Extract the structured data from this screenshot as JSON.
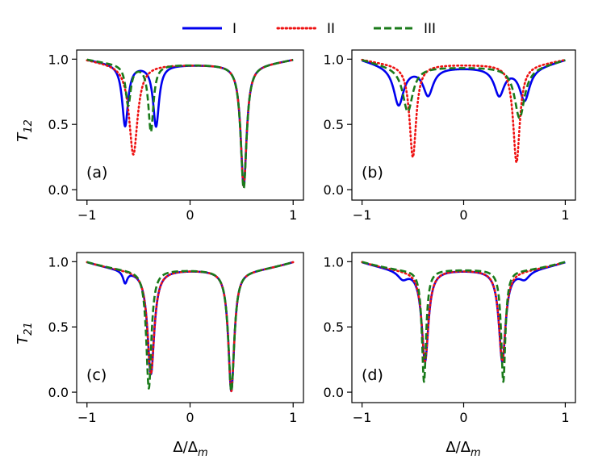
{
  "figure": {
    "legend": [
      {
        "label": "I",
        "color": "#0000ee",
        "dash": "solid"
      },
      {
        "label": "II",
        "color": "#ee1111",
        "dash": "dotted"
      },
      {
        "label": "III",
        "color": "#1a7a1a",
        "dash": "dashed"
      }
    ],
    "ylabel_top": "T12",
    "ylabel_bottom": "T21",
    "xlabel": "Δ/Δm"
  },
  "chart_data": [
    {
      "type": "line",
      "panel": "(a)",
      "ylabel": "T12",
      "xlabel": "",
      "xlim": [
        -1.1,
        1.1
      ],
      "ylim": [
        -0.08,
        1.07
      ],
      "xticks": [
        -1,
        0,
        1
      ],
      "yticks": [
        0.0,
        0.5,
        1.0
      ],
      "xtick_labels": [
        "−1",
        "0",
        "1"
      ],
      "ytick_labels": [
        "0.0",
        "0.5",
        "1.0"
      ],
      "series": [
        {
          "name": "I",
          "baseline": 0.96,
          "dips": [
            {
              "x0": -0.63,
              "w": 0.035,
              "min": 0.49
            },
            {
              "x0": -0.33,
              "w": 0.035,
              "min": 0.49
            },
            {
              "x0": 0.52,
              "w": 0.035,
              "min": 0.03
            }
          ]
        },
        {
          "name": "II",
          "baseline": 0.96,
          "dips": [
            {
              "x0": -0.55,
              "w": 0.05,
              "min": 0.27
            },
            {
              "x0": 0.52,
              "w": 0.035,
              "min": 0.03
            }
          ]
        },
        {
          "name": "III",
          "baseline": 0.96,
          "dips": [
            {
              "x0": -0.6,
              "w": 0.03,
              "min": 0.65
            },
            {
              "x0": -0.38,
              "w": 0.03,
              "min": 0.45
            },
            {
              "x0": 0.52,
              "w": 0.035,
              "min": 0.01
            }
          ]
        }
      ]
    },
    {
      "type": "line",
      "panel": "(b)",
      "ylabel": "",
      "xlabel": "",
      "xlim": [
        -1.1,
        1.1
      ],
      "ylim": [
        -0.08,
        1.07
      ],
      "xticks": [
        -1,
        0,
        1
      ],
      "yticks": [
        0.0,
        0.5,
        1.0
      ],
      "xtick_labels": [
        "−1",
        "0",
        "1"
      ],
      "ytick_labels": [
        "0.0",
        "0.5",
        "1.0"
      ],
      "series": [
        {
          "name": "I",
          "baseline": 0.94,
          "dips": [
            {
              "x0": -0.64,
              "w": 0.06,
              "min": 0.65
            },
            {
              "x0": -0.35,
              "w": 0.06,
              "min": 0.73
            },
            {
              "x0": 0.35,
              "w": 0.06,
              "min": 0.73
            },
            {
              "x0": 0.6,
              "w": 0.06,
              "min": 0.69
            }
          ]
        },
        {
          "name": "II",
          "baseline": 0.96,
          "dips": [
            {
              "x0": -0.5,
              "w": 0.04,
              "min": 0.25
            },
            {
              "x0": 0.52,
              "w": 0.04,
              "min": 0.21
            }
          ]
        },
        {
          "name": "III",
          "baseline": 0.94,
          "dips": [
            {
              "x0": -0.55,
              "w": 0.06,
              "min": 0.6
            },
            {
              "x0": 0.55,
              "w": 0.06,
              "min": 0.55
            }
          ]
        }
      ]
    },
    {
      "type": "line",
      "panel": "(c)",
      "ylabel": "T21",
      "xlabel": "Δ/Δm",
      "xlim": [
        -1.1,
        1.1
      ],
      "ylim": [
        -0.08,
        1.07
      ],
      "xticks": [
        -1,
        0,
        1
      ],
      "yticks": [
        0.0,
        0.5,
        1.0
      ],
      "xtick_labels": [
        "−1",
        "0",
        "1"
      ],
      "ytick_labels": [
        "0.0",
        "0.5",
        "1.0"
      ],
      "series": [
        {
          "name": "I",
          "baseline": 0.94,
          "dips": [
            {
              "x0": -0.63,
              "w": 0.025,
              "min": 0.85
            },
            {
              "x0": -0.38,
              "w": 0.04,
              "min": 0.14
            },
            {
              "x0": 0.4,
              "w": 0.035,
              "min": 0.01
            }
          ]
        },
        {
          "name": "II",
          "baseline": 0.94,
          "dips": [
            {
              "x0": -0.38,
              "w": 0.04,
              "min": 0.14
            },
            {
              "x0": 0.4,
              "w": 0.035,
              "min": 0.01
            }
          ]
        },
        {
          "name": "III",
          "baseline": 0.94,
          "dips": [
            {
              "x0": -0.4,
              "w": 0.03,
              "min": 0.03
            },
            {
              "x0": 0.4,
              "w": 0.035,
              "min": 0.01
            }
          ]
        }
      ]
    },
    {
      "type": "line",
      "panel": "(d)",
      "ylabel": "",
      "xlabel": "Δ/Δm",
      "xlim": [
        -1.1,
        1.1
      ],
      "ylim": [
        -0.08,
        1.07
      ],
      "xticks": [
        -1,
        0,
        1
      ],
      "yticks": [
        0.0,
        0.5,
        1.0
      ],
      "xtick_labels": [
        "−1",
        "0",
        "1"
      ],
      "ytick_labels": [
        "0.0",
        "0.5",
        "1.0"
      ],
      "series": [
        {
          "name": "I",
          "baseline": 0.94,
          "dips": [
            {
              "x0": -0.6,
              "w": 0.06,
              "min": 0.88
            },
            {
              "x0": -0.38,
              "w": 0.04,
              "min": 0.24
            },
            {
              "x0": 0.38,
              "w": 0.04,
              "min": 0.24
            },
            {
              "x0": 0.6,
              "w": 0.06,
              "min": 0.88
            }
          ]
        },
        {
          "name": "II",
          "baseline": 0.94,
          "dips": [
            {
              "x0": -0.38,
              "w": 0.04,
              "min": 0.24
            },
            {
              "x0": 0.38,
              "w": 0.04,
              "min": 0.24
            }
          ]
        },
        {
          "name": "III",
          "baseline": 0.94,
          "dips": [
            {
              "x0": -0.39,
              "w": 0.025,
              "min": 0.08
            },
            {
              "x0": 0.39,
              "w": 0.025,
              "min": 0.08
            }
          ]
        }
      ]
    }
  ]
}
